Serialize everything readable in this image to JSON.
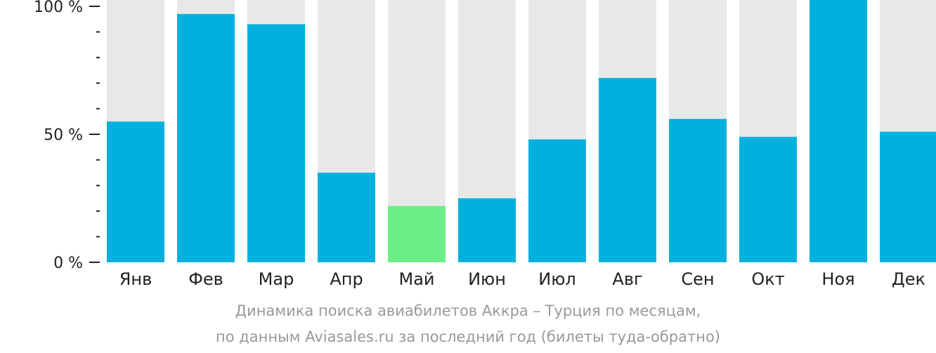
{
  "chart_data": {
    "type": "bar",
    "categories": [
      "Янв",
      "Фев",
      "Мар",
      "Апр",
      "Май",
      "Июн",
      "Июл",
      "Авг",
      "Сен",
      "Окт",
      "Ноя",
      "Дек"
    ],
    "values": [
      55,
      97,
      93,
      35,
      22,
      25,
      48,
      72,
      56,
      49,
      105,
      51
    ],
    "highlight_index": 4,
    "ylim": [
      0,
      100
    ],
    "yticks": [
      {
        "value": 100,
        "label": "100 %"
      },
      {
        "value": 50,
        "label": "50 %"
      },
      {
        "value": 0,
        "label": "0 %"
      }
    ],
    "minor_tick_step": 10,
    "title": "Динамика поиска авиабилетов Аккра – Турция по месяцам,",
    "subtitle": "по данным Aviasales.ru за последний год (билеты туда-обратно)",
    "grid": false,
    "colors": {
      "bar": "#00b1dd",
      "highlight": "#6bef86",
      "background_bar": "#e8e8e8",
      "axis": "#222222",
      "tick_label": "#222222",
      "caption": "#999999"
    }
  }
}
